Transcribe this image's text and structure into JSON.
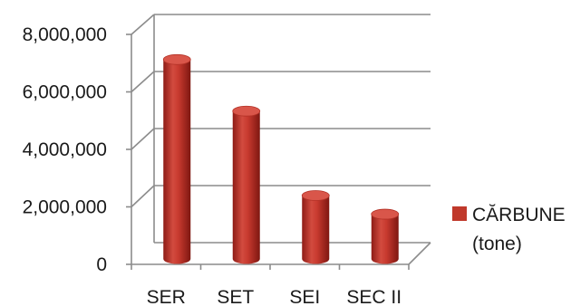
{
  "chart_data": {
    "type": "bar",
    "style": "3d-cylinder",
    "categories": [
      "SER",
      "SET",
      "SEI",
      "SEC II"
    ],
    "series": [
      {
        "name": "CĂRBUNE (tone)",
        "name_lines": [
          "CĂRBUNE",
          "(tone)"
        ],
        "color": "#c0392b",
        "values": [
          6900000,
          5100000,
          2150000,
          1500000
        ]
      }
    ],
    "y_ticks": [
      "0",
      "2,000,000",
      "4,000,000",
      "6,000,000",
      "8,000,000"
    ],
    "ylim": [
      0,
      8000000
    ],
    "grid": true,
    "legend": "right"
  }
}
